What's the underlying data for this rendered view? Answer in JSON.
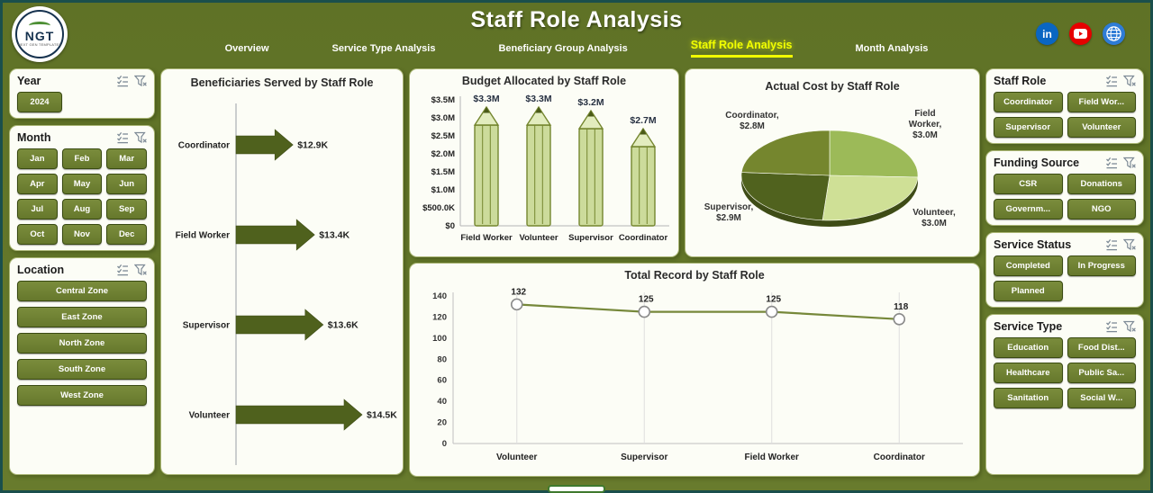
{
  "header": {
    "title": "Staff Role Analysis",
    "logo": {
      "text": "NGT",
      "subtext": "NEXT GEN TEMPLATES"
    },
    "nav": [
      {
        "label": "Overview",
        "active": false
      },
      {
        "label": "Service Type Analysis",
        "active": false
      },
      {
        "label": "Beneficiary Group Analysis",
        "active": false
      },
      {
        "label": "Staff Role Analysis",
        "active": true
      },
      {
        "label": "Month Analysis",
        "active": false
      }
    ],
    "social": [
      "linkedin-icon",
      "youtube-icon",
      "globe-icon"
    ]
  },
  "slicers": {
    "year": {
      "title": "Year",
      "items": [
        "2024"
      ]
    },
    "month": {
      "title": "Month",
      "items": [
        "Jan",
        "Feb",
        "Mar",
        "Apr",
        "May",
        "Jun",
        "Jul",
        "Aug",
        "Sep",
        "Oct",
        "Nov",
        "Dec"
      ]
    },
    "location": {
      "title": "Location",
      "items": [
        "Central Zone",
        "East Zone",
        "North Zone",
        "South Zone",
        "West Zone"
      ]
    },
    "staff_role": {
      "title": "Staff Role",
      "items": [
        "Coordinator",
        "Field Wor...",
        "Supervisor",
        "Volunteer"
      ]
    },
    "funding_source": {
      "title": "Funding Source",
      "items": [
        "CSR",
        "Donations",
        "Governm...",
        "NGO"
      ]
    },
    "service_status": {
      "title": "Service Status",
      "items": [
        "Completed",
        "In Progress",
        "Planned"
      ]
    },
    "service_type": {
      "title": "Service Type",
      "items": [
        "Education",
        "Food Dist...",
        "Healthcare",
        "Public Sa...",
        "Sanitation",
        "Social W..."
      ]
    }
  },
  "chart_data": [
    {
      "type": "bar",
      "orientation": "horizontal",
      "title": "Beneficiaries Served by Staff Role",
      "categories": [
        "Coordinator",
        "Field Worker",
        "Supervisor",
        "Volunteer"
      ],
      "values": [
        12.9,
        13.4,
        13.6,
        14.5
      ],
      "value_labels": [
        "$12.9K",
        "$13.4K",
        "$13.6K",
        "$14.5K"
      ],
      "xlim": [
        12,
        14.5
      ],
      "bar_color": "#4f611d"
    },
    {
      "type": "bar",
      "bar_style": "pencil",
      "title": "Budget Allocated by Staff Role",
      "categories": [
        "Field Worker",
        "Volunteer",
        "Supervisor",
        "Coordinator"
      ],
      "values": [
        3.3,
        3.3,
        3.2,
        2.7
      ],
      "value_labels": [
        "$3.3M",
        "$3.3M",
        "$3.2M",
        "$2.7M"
      ],
      "ytick_values": [
        0,
        0.5,
        1.0,
        1.5,
        2.0,
        2.5,
        3.0,
        3.5
      ],
      "ytick_labels": [
        "$0",
        "$500.0K",
        "$1.0M",
        "$1.5M",
        "$2.0M",
        "$2.5M",
        "$3.0M",
        "$3.5M"
      ],
      "ylim": [
        0,
        3.5
      ],
      "fill": "#ccdb9b",
      "stroke": "#74862f"
    },
    {
      "type": "pie",
      "title": "Actual Cost by Staff Role",
      "categories": [
        "Field Worker",
        "Volunteer",
        "Supervisor",
        "Coordinator"
      ],
      "values": [
        3.0,
        3.0,
        2.9,
        2.8
      ],
      "slice_colors": [
        "#9cba58",
        "#cfe096",
        "#50621e",
        "#75862e"
      ],
      "point_labels": [
        [
          "Field",
          "Worker,",
          "$3.0M"
        ],
        [
          "Volunteer,",
          "$3.0M"
        ],
        [
          "Supervisor,",
          "$2.9M"
        ],
        [
          "Coordinator,",
          "$2.8M"
        ]
      ]
    },
    {
      "type": "line",
      "title": "Total Record by Staff Role",
      "categories": [
        "Volunteer",
        "Supervisor",
        "Field Worker",
        "Coordinator"
      ],
      "values": [
        132,
        125,
        125,
        118
      ],
      "ytick_values": [
        0,
        20,
        40,
        60,
        80,
        100,
        120,
        140
      ],
      "ylim": [
        0,
        140
      ],
      "line_color": "#76883a"
    }
  ],
  "colors": {
    "accent_yellow": "#f2ff00",
    "button_green": "#6d7f31",
    "dark_green": "#4f611d",
    "frame_teal": "#1a4f4c"
  }
}
